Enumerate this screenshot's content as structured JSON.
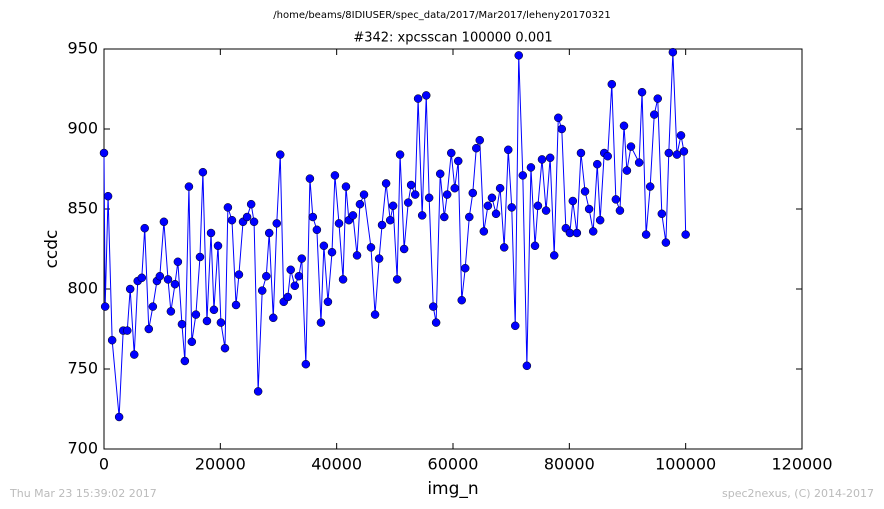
{
  "chart_data": {
    "type": "line",
    "suptitle": "/home/beams/8IDIUSER/spec_data/2017/Mar2017/leheny20170321",
    "title": "#342: xpcsscan 100000 0.001",
    "xlabel": "img_n",
    "ylabel": "ccdc",
    "x": [
      0,
      200,
      700,
      1400,
      2600,
      3300,
      4000,
      4500,
      5200,
      5800,
      6500,
      7000,
      7700,
      8400,
      9100,
      9600,
      10300,
      11000,
      11500,
      12200,
      12700,
      13400,
      13900,
      14600,
      15100,
      15800,
      16500,
      17000,
      17700,
      18400,
      18900,
      19600,
      20100,
      20800,
      21300,
      22000,
      22700,
      23200,
      23900,
      24600,
      25300,
      25800,
      26500,
      27200,
      27900,
      28400,
      29100,
      29700,
      30300,
      30900,
      31600,
      32100,
      32800,
      33500,
      34000,
      34700,
      35400,
      35900,
      36600,
      37300,
      37800,
      38500,
      39200,
      39700,
      40400,
      41100,
      41600,
      42100,
      42800,
      43500,
      44000,
      44700,
      45900,
      46600,
      47300,
      47800,
      48500,
      49200,
      49700,
      50400,
      50900,
      51600,
      52300,
      52800,
      53500,
      54000,
      54700,
      55400,
      55900,
      56600,
      57100,
      57800,
      58500,
      59000,
      59700,
      60300,
      60900,
      61500,
      62100,
      62800,
      63400,
      64000,
      64600,
      65300,
      66000,
      66700,
      67400,
      68100,
      68800,
      69500,
      70100,
      70700,
      71300,
      72000,
      72700,
      73400,
      74100,
      74600,
      75300,
      76000,
      76700,
      77400,
      78100,
      78700,
      79400,
      80100,
      80600,
      81300,
      82000,
      82700,
      83400,
      84100,
      84800,
      85300,
      86000,
      86600,
      87300,
      88000,
      88700,
      89400,
      89900,
      90600,
      92000,
      92500,
      93200,
      93900,
      94600,
      95200,
      95900,
      96600,
      97100,
      97800,
      98500,
      99200,
      99700,
      100000
    ],
    "values": [
      885,
      789,
      858,
      768,
      720,
      774,
      774,
      800,
      759,
      805,
      807,
      838,
      775,
      789,
      805,
      808,
      842,
      806,
      786,
      803,
      817,
      778,
      755,
      864,
      767,
      784,
      820,
      873,
      780,
      835,
      787,
      827,
      779,
      763,
      851,
      843,
      790,
      809,
      842,
      845,
      853,
      842,
      736,
      799,
      808,
      835,
      782,
      841,
      884,
      792,
      795,
      812,
      802,
      808,
      819,
      753,
      869,
      845,
      837,
      779,
      827,
      792,
      823,
      871,
      841,
      806,
      864,
      843,
      846,
      821,
      853,
      859,
      826,
      784,
      819,
      840,
      866,
      843,
      852,
      806,
      884,
      825,
      854,
      865,
      859,
      919,
      846,
      921,
      857,
      789,
      779,
      872,
      845,
      859,
      885,
      863,
      880,
      793,
      813,
      845,
      860,
      888,
      893,
      836,
      852,
      857,
      847,
      863,
      826,
      887,
      851,
      777,
      946,
      871,
      752,
      876,
      827,
      852,
      881,
      849,
      882,
      821,
      907,
      900,
      838,
      835,
      855,
      835,
      885,
      861,
      850,
      836,
      878,
      843,
      885,
      883,
      928,
      856,
      849,
      902,
      874,
      889,
      879,
      923,
      834,
      864,
      909,
      919,
      847,
      829,
      885,
      948,
      884,
      896,
      886,
      834
    ],
    "color": "#0000ff",
    "marker": "o",
    "xlim": [
      0,
      120000
    ],
    "ylim": [
      700,
      950
    ],
    "xticks": [
      0,
      20000,
      40000,
      60000,
      80000,
      100000,
      120000
    ],
    "yticks": [
      700,
      750,
      800,
      850,
      900,
      950
    ]
  },
  "footer": {
    "timestamp": "Thu Mar 23 15:39:02 2017",
    "credit": "spec2nexus, (C) 2014-2017"
  }
}
